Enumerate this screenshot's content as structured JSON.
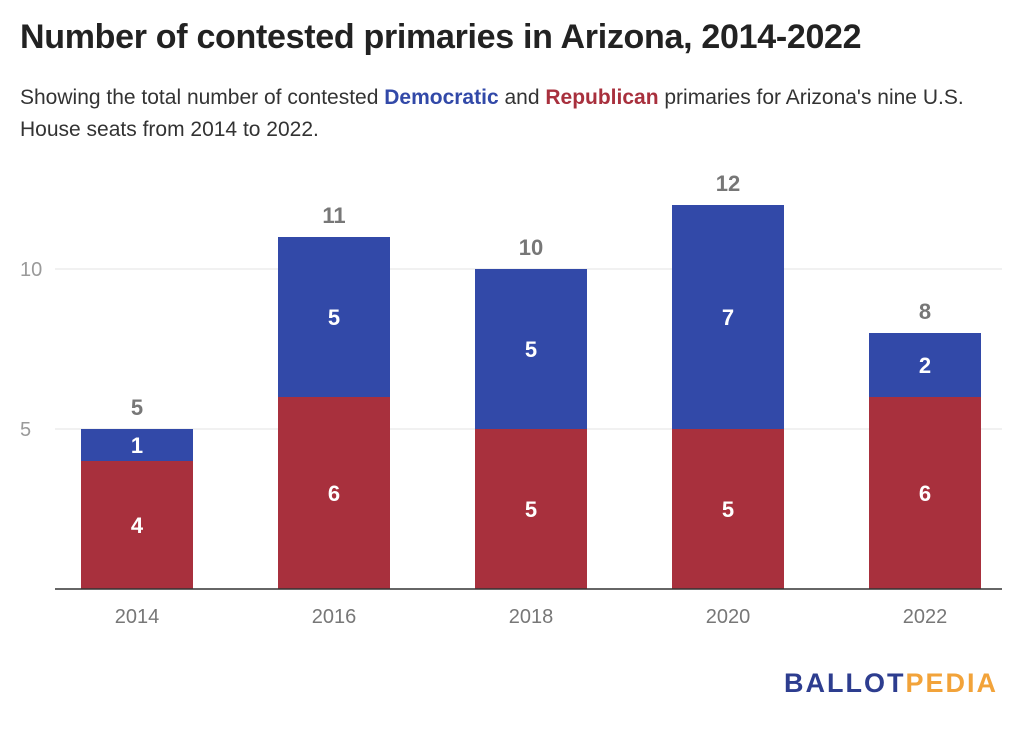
{
  "header": {
    "title": "Number of contested primaries in Arizona, 2014-2022",
    "subtitle_pre": "Showing the total number of contested ",
    "subtitle_dem": "Democratic",
    "subtitle_mid": " and ",
    "subtitle_rep": "Republican",
    "subtitle_post": " primaries for Arizona's nine U.S. House seats from 2014 to 2022."
  },
  "chart_data": {
    "type": "bar",
    "stacked": true,
    "categories": [
      "2014",
      "2016",
      "2018",
      "2020",
      "2022"
    ],
    "series": [
      {
        "name": "Republican",
        "color": "#a8303d",
        "values": [
          4,
          6,
          5,
          5,
          6
        ]
      },
      {
        "name": "Democratic",
        "color": "#3249a8",
        "values": [
          1,
          5,
          5,
          7,
          2
        ]
      }
    ],
    "totals": [
      5,
      11,
      10,
      12,
      8
    ],
    "yticks": [
      5,
      10
    ],
    "ylim": [
      0,
      13
    ],
    "grid": true,
    "legend": "inline in subtitle"
  },
  "logo": {
    "part1": "BALLOT",
    "part2": "PEDIA"
  }
}
